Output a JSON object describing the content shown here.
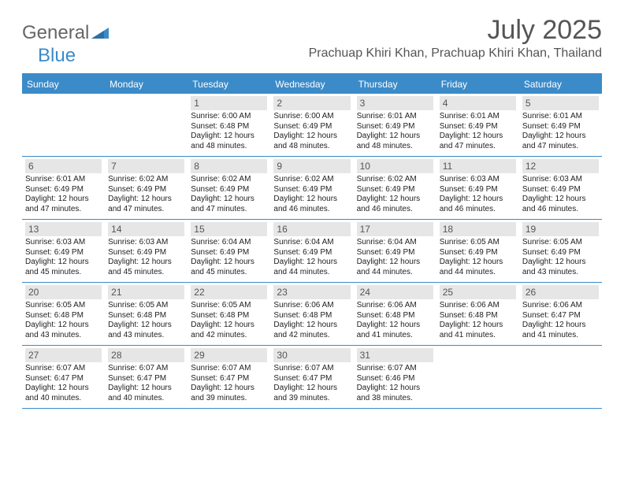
{
  "brand": {
    "part1": "General",
    "part2": "Blue"
  },
  "title": "July 2025",
  "location": "Prachuap Khiri Khan, Prachuap Khiri Khan, Thailand",
  "colors": {
    "accent": "#3b8bc9",
    "daynum_bg": "#e6e6e6",
    "text_muted": "#555555",
    "white": "#ffffff"
  },
  "dow": [
    "Sunday",
    "Monday",
    "Tuesday",
    "Wednesday",
    "Thursday",
    "Friday",
    "Saturday"
  ],
  "weeks": [
    [
      null,
      null,
      {
        "n": "1",
        "sr": "6:00 AM",
        "ss": "6:48 PM",
        "dl": "12 hours and 48 minutes."
      },
      {
        "n": "2",
        "sr": "6:00 AM",
        "ss": "6:49 PM",
        "dl": "12 hours and 48 minutes."
      },
      {
        "n": "3",
        "sr": "6:01 AM",
        "ss": "6:49 PM",
        "dl": "12 hours and 48 minutes."
      },
      {
        "n": "4",
        "sr": "6:01 AM",
        "ss": "6:49 PM",
        "dl": "12 hours and 47 minutes."
      },
      {
        "n": "5",
        "sr": "6:01 AM",
        "ss": "6:49 PM",
        "dl": "12 hours and 47 minutes."
      }
    ],
    [
      {
        "n": "6",
        "sr": "6:01 AM",
        "ss": "6:49 PM",
        "dl": "12 hours and 47 minutes."
      },
      {
        "n": "7",
        "sr": "6:02 AM",
        "ss": "6:49 PM",
        "dl": "12 hours and 47 minutes."
      },
      {
        "n": "8",
        "sr": "6:02 AM",
        "ss": "6:49 PM",
        "dl": "12 hours and 47 minutes."
      },
      {
        "n": "9",
        "sr": "6:02 AM",
        "ss": "6:49 PM",
        "dl": "12 hours and 46 minutes."
      },
      {
        "n": "10",
        "sr": "6:02 AM",
        "ss": "6:49 PM",
        "dl": "12 hours and 46 minutes."
      },
      {
        "n": "11",
        "sr": "6:03 AM",
        "ss": "6:49 PM",
        "dl": "12 hours and 46 minutes."
      },
      {
        "n": "12",
        "sr": "6:03 AM",
        "ss": "6:49 PM",
        "dl": "12 hours and 46 minutes."
      }
    ],
    [
      {
        "n": "13",
        "sr": "6:03 AM",
        "ss": "6:49 PM",
        "dl": "12 hours and 45 minutes."
      },
      {
        "n": "14",
        "sr": "6:03 AM",
        "ss": "6:49 PM",
        "dl": "12 hours and 45 minutes."
      },
      {
        "n": "15",
        "sr": "6:04 AM",
        "ss": "6:49 PM",
        "dl": "12 hours and 45 minutes."
      },
      {
        "n": "16",
        "sr": "6:04 AM",
        "ss": "6:49 PM",
        "dl": "12 hours and 44 minutes."
      },
      {
        "n": "17",
        "sr": "6:04 AM",
        "ss": "6:49 PM",
        "dl": "12 hours and 44 minutes."
      },
      {
        "n": "18",
        "sr": "6:05 AM",
        "ss": "6:49 PM",
        "dl": "12 hours and 44 minutes."
      },
      {
        "n": "19",
        "sr": "6:05 AM",
        "ss": "6:49 PM",
        "dl": "12 hours and 43 minutes."
      }
    ],
    [
      {
        "n": "20",
        "sr": "6:05 AM",
        "ss": "6:48 PM",
        "dl": "12 hours and 43 minutes."
      },
      {
        "n": "21",
        "sr": "6:05 AM",
        "ss": "6:48 PM",
        "dl": "12 hours and 43 minutes."
      },
      {
        "n": "22",
        "sr": "6:05 AM",
        "ss": "6:48 PM",
        "dl": "12 hours and 42 minutes."
      },
      {
        "n": "23",
        "sr": "6:06 AM",
        "ss": "6:48 PM",
        "dl": "12 hours and 42 minutes."
      },
      {
        "n": "24",
        "sr": "6:06 AM",
        "ss": "6:48 PM",
        "dl": "12 hours and 41 minutes."
      },
      {
        "n": "25",
        "sr": "6:06 AM",
        "ss": "6:48 PM",
        "dl": "12 hours and 41 minutes."
      },
      {
        "n": "26",
        "sr": "6:06 AM",
        "ss": "6:47 PM",
        "dl": "12 hours and 41 minutes."
      }
    ],
    [
      {
        "n": "27",
        "sr": "6:07 AM",
        "ss": "6:47 PM",
        "dl": "12 hours and 40 minutes."
      },
      {
        "n": "28",
        "sr": "6:07 AM",
        "ss": "6:47 PM",
        "dl": "12 hours and 40 minutes."
      },
      {
        "n": "29",
        "sr": "6:07 AM",
        "ss": "6:47 PM",
        "dl": "12 hours and 39 minutes."
      },
      {
        "n": "30",
        "sr": "6:07 AM",
        "ss": "6:47 PM",
        "dl": "12 hours and 39 minutes."
      },
      {
        "n": "31",
        "sr": "6:07 AM",
        "ss": "6:46 PM",
        "dl": "12 hours and 38 minutes."
      },
      null,
      null
    ]
  ],
  "labels": {
    "sunrise": "Sunrise: ",
    "sunset": "Sunset: ",
    "daylight": "Daylight: "
  }
}
